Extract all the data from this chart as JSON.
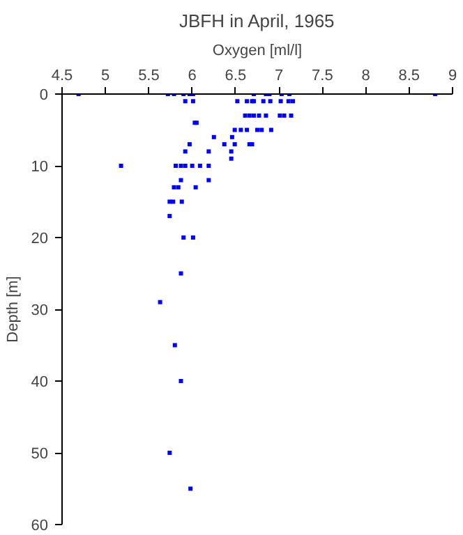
{
  "chart_data": {
    "type": "scatter",
    "title": "JBFH in April, 1965",
    "xlabel": "Oxygen [ml/l]",
    "ylabel": "Depth [m]",
    "x": [
      4.69,
      5.72,
      5.79,
      5.9,
      5.97,
      6.01,
      6.71,
      6.85,
      6.89,
      7.03,
      7.12,
      8.8,
      5.92,
      6.01,
      6.52,
      6.63,
      6.69,
      6.71,
      6.82,
      6.9,
      7.02,
      7.11,
      7.16,
      6.61,
      6.66,
      6.71,
      6.77,
      6.85,
      7.01,
      7.06,
      7.14,
      6.03,
      6.05,
      6.49,
      6.56,
      6.63,
      6.75,
      6.8,
      6.91,
      6.25,
      6.46,
      5.97,
      6.37,
      6.49,
      6.66,
      6.69,
      5.92,
      6.19,
      6.45,
      6.45,
      5.18,
      5.81,
      5.87,
      5.92,
      6.0,
      6.09,
      6.19,
      5.87,
      6.19,
      5.79,
      5.84,
      6.04,
      5.74,
      5.78,
      5.88,
      5.74,
      5.9,
      6.01,
      5.87,
      5.63,
      5.8,
      5.87,
      5.74,
      5.98
    ],
    "values": [
      0,
      0,
      0,
      0,
      0,
      0,
      0,
      0,
      0,
      0,
      0,
      0,
      1,
      1,
      1,
      1,
      1,
      1,
      1,
      1,
      1,
      1,
      1,
      3,
      3,
      3,
      3,
      3,
      3,
      3,
      3,
      4,
      4,
      5,
      5,
      5,
      5,
      5,
      5,
      6,
      6,
      7,
      7,
      7,
      7,
      7,
      8,
      8,
      8,
      9,
      10,
      10,
      10,
      10,
      10,
      10,
      10,
      12,
      12,
      13,
      13,
      13,
      15,
      15,
      15,
      17,
      20,
      20,
      25,
      29,
      35,
      40,
      50,
      55
    ],
    "color": "#0000ff",
    "marker": "square",
    "xlim": [
      4.5,
      9
    ],
    "xticks": [
      4.5,
      5,
      5.5,
      6,
      6.5,
      7,
      7.5,
      8,
      8.5,
      9
    ],
    "ylim": [
      60,
      0
    ],
    "yticks": [
      0,
      10,
      20,
      30,
      40,
      50,
      60
    ],
    "grid": false
  }
}
